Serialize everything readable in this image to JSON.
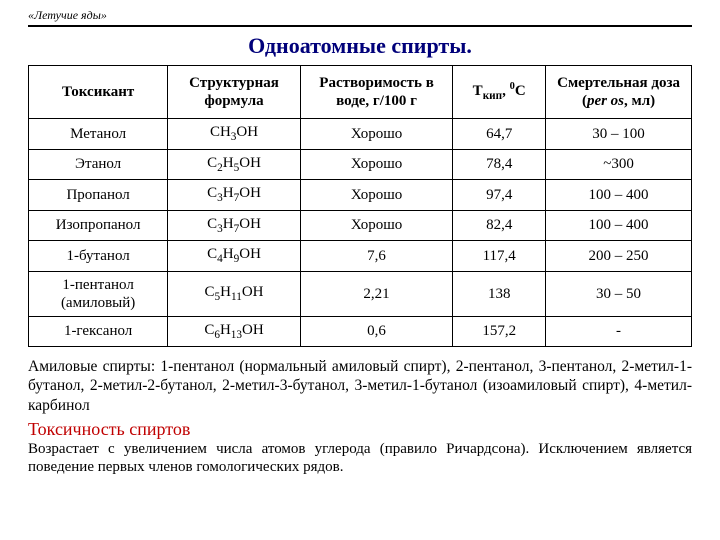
{
  "header_tag": "«Летучие яды»",
  "title": "Одноатомные спирты.",
  "columns": {
    "c0": "Токсикант",
    "c1": "Структурная формула",
    "c2": "Растворимость в воде, г/100 г",
    "c4": "Смертельная доза (",
    "c4_i": "per os",
    "c4_end": ", мл)"
  },
  "rows": [
    {
      "name": "Метанол",
      "formula": "CH<sub>3</sub>OH",
      "sol": "Хорошо",
      "t": "64,7",
      "dose": "30 – 100"
    },
    {
      "name": "Этанол",
      "formula": "C<sub>2</sub>H<sub>5</sub>OH",
      "sol": "Хорошо",
      "t": "78,4",
      "dose": "~300"
    },
    {
      "name": "Пропанол",
      "formula": "C<sub>3</sub>H<sub>7</sub>OH",
      "sol": "Хорошо",
      "t": "97,4",
      "dose": "100 – 400"
    },
    {
      "name": "Изопропанол",
      "formula": "C<sub>3</sub>H<sub>7</sub>OH",
      "sol": "Хорошо",
      "t": "82,4",
      "dose": "100 – 400"
    },
    {
      "name": "1-бутанол",
      "formula": "C<sub>4</sub>H<sub>9</sub>OH",
      "sol": "7,6",
      "t": "117,4",
      "dose": "200 – 250"
    },
    {
      "name": "1-пентанол (амиловый)",
      "formula": "C<sub>5</sub>H<sub>11</sub>OH",
      "sol": "2,21",
      "t": "138",
      "dose": "30 – 50"
    },
    {
      "name": "1-гексанол",
      "formula": "C<sub>6</sub>H<sub>13</sub>OH",
      "sol": "0,6",
      "t": "157,2",
      "dose": "-"
    }
  ],
  "para1": "Амиловые спирты: 1-пентанол (нормальный амиловый спирт), 2-пентанол, 3-пентанол, 2-метил-1-бутанол, 2-метил-2-бутанол, 2-метил-3-бутанол, 3-метил-1-бутанол (изоамиловый спирт), 4-метил-карбинол",
  "subhead": "Токсичность спиртов",
  "para2": "Возрастает с увеличением числа атомов углерода (правило Ричардсона). Исключением является поведение первых членов гомологических рядов."
}
